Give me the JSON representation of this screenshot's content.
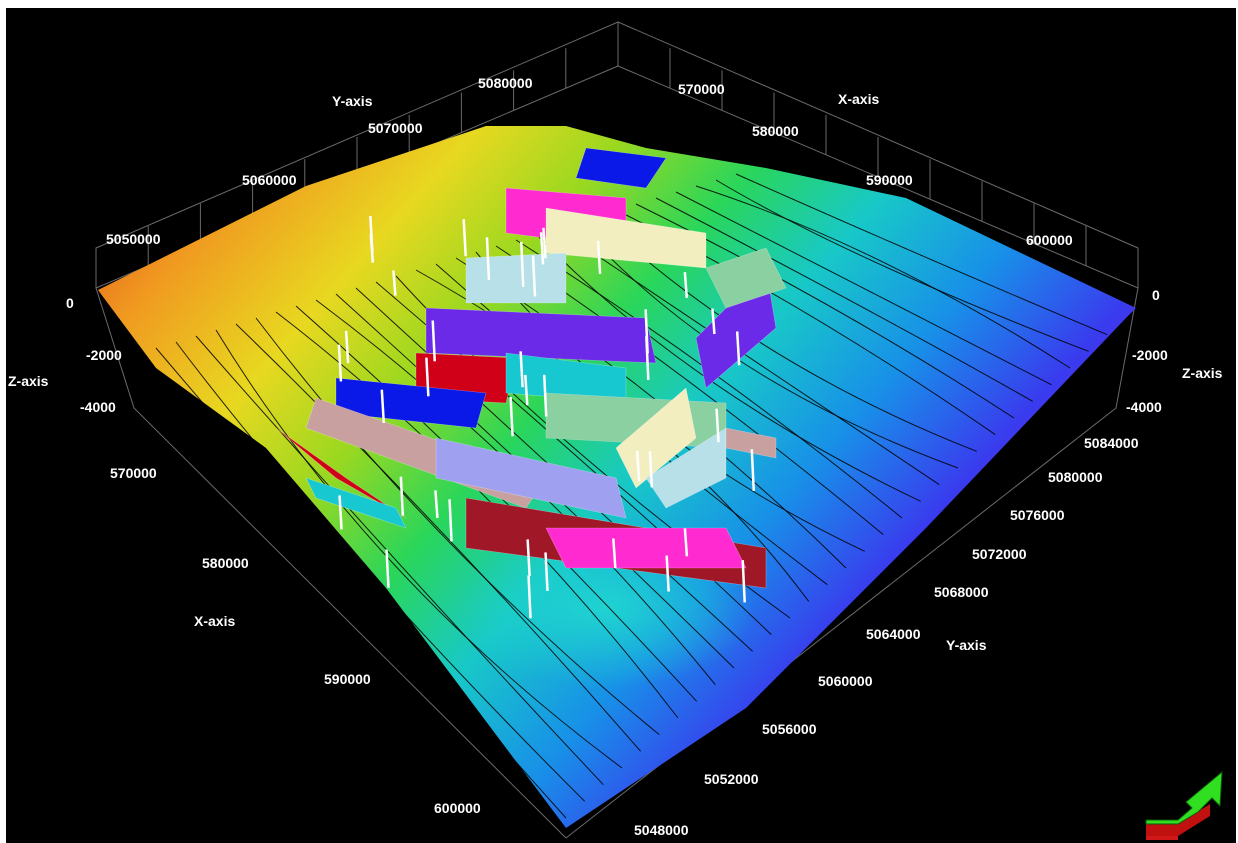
{
  "chart_data": {
    "type": "surface-3d",
    "title": "",
    "axes": {
      "x_label": "X-axis",
      "y_label": "Y-axis",
      "z_label": "Z-axis",
      "x_ticks_top": [
        "570000",
        "580000",
        "590000",
        "600000"
      ],
      "y_ticks_top": [
        "5080000",
        "5070000",
        "5060000",
        "5050000"
      ],
      "x_ticks_left": [
        "570000",
        "580000",
        "590000",
        "600000"
      ],
      "y_ticks_right": [
        "5084000",
        "5080000",
        "5076000",
        "5072000",
        "5068000",
        "5064000",
        "5060000",
        "5056000",
        "5052000",
        "5048000"
      ],
      "z_ticks_left": [
        "0",
        "-2000",
        "-4000"
      ],
      "z_ticks_right": [
        "0",
        "-2000",
        "-4000"
      ]
    },
    "colors": {
      "background": "#000000",
      "ramp": [
        "#e0401a",
        "#f09a20",
        "#e8d820",
        "#9ad820",
        "#2ad65a",
        "#18c8c8",
        "#1890e8",
        "#3a3aee",
        "#8a18d8"
      ],
      "faults": [
        "#ff2ad0",
        "#f2eec0",
        "#b8e0e8",
        "#6a2ae8",
        "#d00018",
        "#18c8d0",
        "#0a18e8",
        "#8ad0a0",
        "#c8a0a0",
        "#a0a0f0",
        "#a01828"
      ]
    },
    "orientation_arrow": "direction-arrow-icon"
  }
}
